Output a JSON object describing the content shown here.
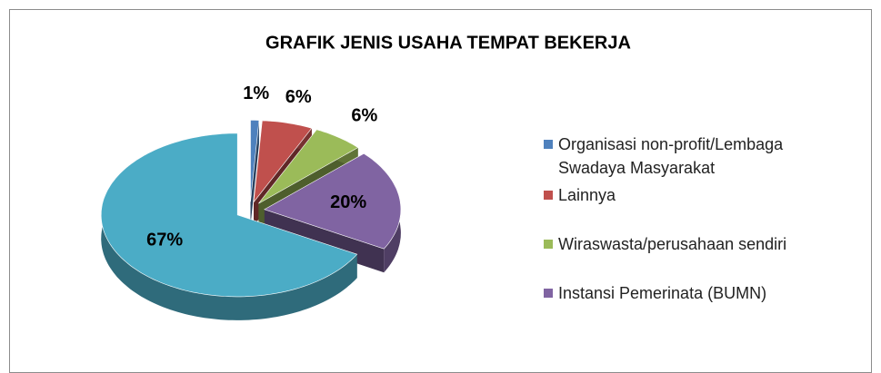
{
  "chart_data": {
    "type": "pie",
    "title": "GRAFIK JENIS USAHA TEMPAT BEKERJA",
    "categories": [
      "Organisasi non-profit/Lembaga Swadaya Masyarakat",
      "Lainnya",
      "Wiraswasta/perusahaan sendiri",
      "Instansi Pemerinata (BUMN)",
      null
    ],
    "values": [
      1,
      6,
      6,
      20,
      67
    ],
    "value_labels": [
      "1%",
      "6%",
      "6%",
      "20%",
      "67%"
    ],
    "colors": [
      "#4f81bd",
      "#c0504d",
      "#9bbb59",
      "#8064a2",
      "#4bacc6"
    ],
    "three_d": true,
    "exploded": true,
    "legend": "right"
  }
}
